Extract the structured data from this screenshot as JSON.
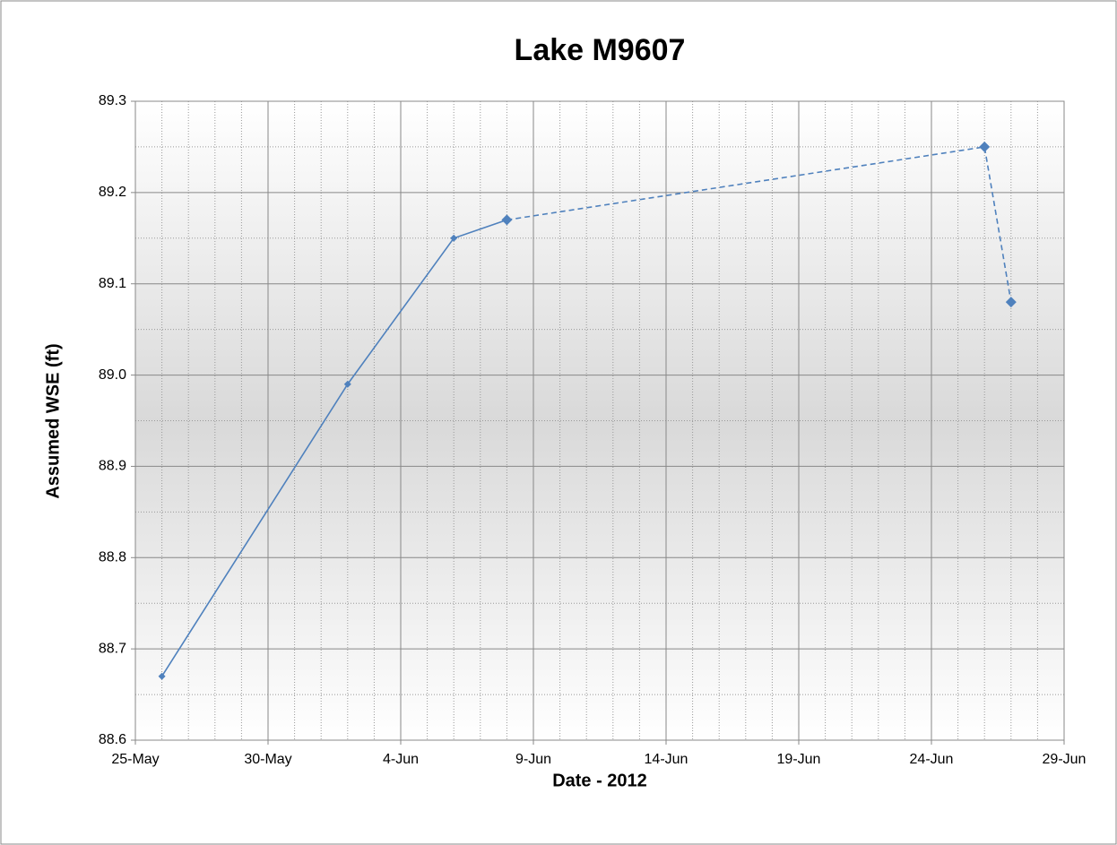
{
  "chart_data": {
    "type": "line",
    "title": "Lake M9607",
    "x_label": "Date - 2012",
    "y_label": "Assumed WSE (ft)",
    "x": [
      "2012-05-26",
      "2012-06-02",
      "2012-06-06",
      "2012-06-08",
      "2012-06-26",
      "2012-06-27"
    ],
    "series": [
      {
        "color": "#4f81bd",
        "dashed": false,
        "values": [
          88.67,
          88.99,
          89.15,
          89.17,
          null,
          null
        ]
      },
      {
        "color": "#4f81bd",
        "dashed": true,
        "values": [
          null,
          null,
          null,
          89.17,
          89.25,
          89.08
        ]
      }
    ],
    "xlim": [
      "2012-05-25",
      "2012-06-29"
    ],
    "xticks": [
      {
        "value": "2012-05-25",
        "label": "25-May"
      },
      {
        "value": "2012-05-30",
        "label": "30-May"
      },
      {
        "value": "2012-06-04",
        "label": "4-Jun"
      },
      {
        "value": "2012-06-09",
        "label": "9-Jun"
      },
      {
        "value": "2012-06-14",
        "label": "14-Jun"
      },
      {
        "value": "2012-06-19",
        "label": "19-Jun"
      },
      {
        "value": "2012-06-24",
        "label": "24-Jun"
      },
      {
        "value": "2012-06-29",
        "label": "29-Jun"
      }
    ],
    "ylim": [
      88.6,
      89.3
    ],
    "yticks": [
      {
        "value": 88.6,
        "label": "88.6"
      },
      {
        "value": 88.7,
        "label": "88.7"
      },
      {
        "value": 88.8,
        "label": "88.8"
      },
      {
        "value": 88.9,
        "label": "88.9"
      },
      {
        "value": 89.0,
        "label": "89.0"
      },
      {
        "value": 89.1,
        "label": "89.1"
      },
      {
        "value": 89.2,
        "label": "89.2"
      },
      {
        "value": 89.3,
        "label": "89.3"
      }
    ],
    "grid": true
  }
}
